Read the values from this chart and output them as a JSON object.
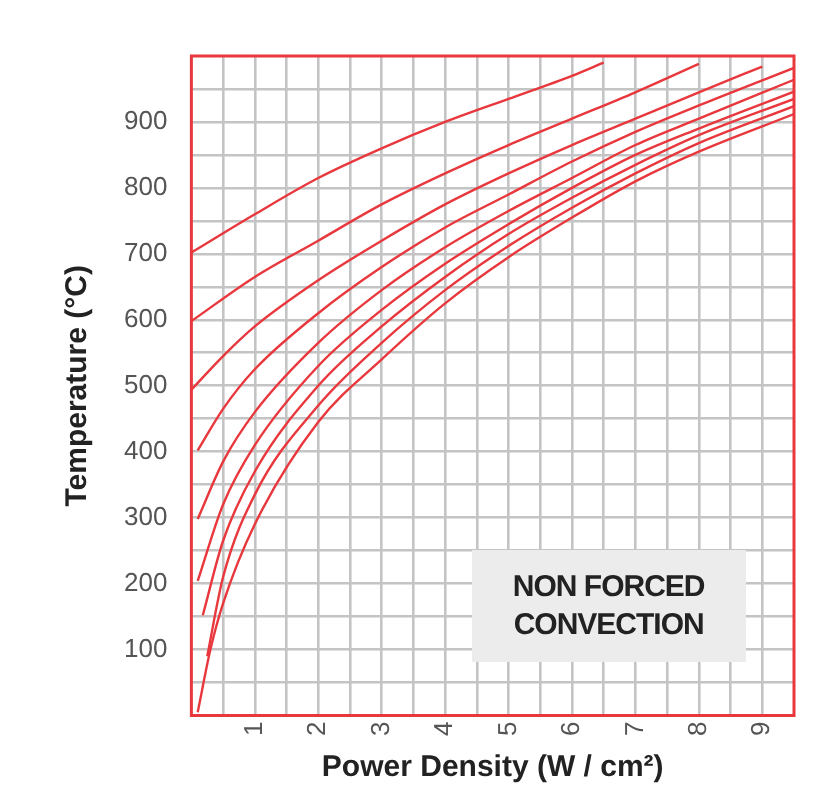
{
  "chart_data": {
    "type": "line",
    "xlabel": "Power Density (W / cm²)",
    "ylabel": "Temperature (°C)",
    "xlim": [
      0,
      9.5
    ],
    "ylim": [
      0,
      1000
    ],
    "xticks": [
      {
        "value": 0.5,
        "label": null
      },
      1,
      {
        "value": 1.5,
        "label": null
      },
      2,
      {
        "value": 2.5,
        "label": null
      },
      3,
      {
        "value": 3.5,
        "label": null
      },
      4,
      {
        "value": 4.5,
        "label": null
      },
      5,
      {
        "value": 5.5,
        "label": null
      },
      6,
      {
        "value": 6.5,
        "label": null
      },
      7,
      {
        "value": 7.5,
        "label": null
      },
      8,
      {
        "value": 8.5,
        "label": null
      },
      9
    ],
    "yticks": [
      {
        "value": 50,
        "label": null
      },
      100,
      {
        "value": 150,
        "label": null
      },
      200,
      {
        "value": 250,
        "label": null
      },
      300,
      {
        "value": 350,
        "label": null
      },
      400,
      {
        "value": 450,
        "label": null
      },
      500,
      {
        "value": 550,
        "label": null
      },
      600,
      {
        "value": 650,
        "label": null
      },
      700,
      {
        "value": 750,
        "label": null
      },
      800,
      {
        "value": 850,
        "label": null
      },
      900,
      {
        "value": 950,
        "label": null
      }
    ],
    "grid": true,
    "legend": false,
    "marker": "none",
    "line_style": "solid",
    "annotations": [
      "NON FORCED CONVECTION"
    ],
    "series": [
      {
        "color": "#e8383d",
        "x": [
          0,
          1,
          2,
          3,
          4,
          5,
          6,
          6.5
        ],
        "values": [
          702,
          760,
          815,
          860,
          900,
          935,
          970,
          990
        ]
      },
      {
        "color": "#e8383d",
        "x": [
          0,
          1,
          2,
          3,
          4,
          5,
          6,
          7,
          8
        ],
        "values": [
          598,
          665,
          720,
          775,
          822,
          865,
          905,
          945,
          988
        ]
      },
      {
        "color": "#e8383d",
        "x": [
          0,
          0.5,
          1,
          2,
          3,
          4,
          5,
          6,
          7,
          8,
          9
        ],
        "values": [
          494,
          545,
          590,
          660,
          720,
          775,
          822,
          865,
          905,
          945,
          984
        ]
      },
      {
        "color": "#e8383d",
        "x": [
          0.1,
          0.5,
          1,
          2,
          3,
          4,
          5,
          6,
          7,
          8,
          9.5
        ],
        "values": [
          402,
          465,
          525,
          610,
          680,
          740,
          790,
          840,
          885,
          925,
          982
        ]
      },
      {
        "color": "#e8383d",
        "x": [
          0.1,
          0.5,
          1,
          2,
          3,
          4,
          5,
          6,
          7,
          8,
          9.5
        ],
        "values": [
          298,
          385,
          460,
          565,
          645,
          710,
          765,
          815,
          865,
          905,
          964
        ]
      },
      {
        "color": "#e8383d",
        "x": [
          0.1,
          0.5,
          1,
          2,
          3,
          4,
          5,
          6,
          7,
          8,
          9.5
        ],
        "values": [
          204,
          320,
          410,
          530,
          615,
          685,
          745,
          800,
          850,
          890,
          946
        ]
      },
      {
        "color": "#e8383d",
        "x": [
          0.18,
          0.5,
          1,
          2,
          3,
          4,
          5,
          6,
          7,
          8,
          9.5
        ],
        "values": [
          152,
          265,
          370,
          500,
          590,
          665,
          730,
          785,
          835,
          880,
          935
        ]
      },
      {
        "color": "#e8383d",
        "x": [
          0.25,
          0.5,
          1,
          2,
          3,
          4,
          5,
          6,
          7,
          8,
          9.5
        ],
        "values": [
          90,
          210,
          335,
          470,
          565,
          645,
          712,
          770,
          822,
          868,
          924
        ]
      },
      {
        "color": "#e8383d",
        "x": [
          0.1,
          0.3,
          0.5,
          1,
          2,
          3,
          4,
          5,
          6,
          7,
          8,
          9.5
        ],
        "values": [
          5,
          100,
          170,
          290,
          445,
          540,
          625,
          695,
          755,
          810,
          855,
          912
        ]
      }
    ]
  }
}
